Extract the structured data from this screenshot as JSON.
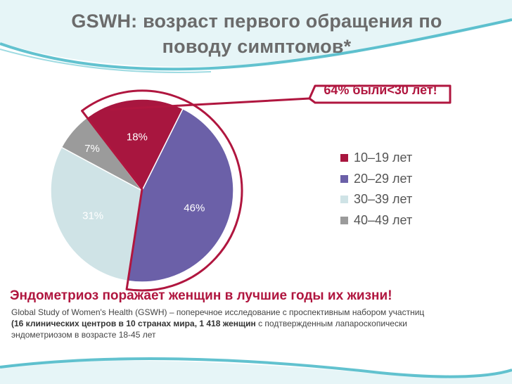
{
  "title": "GSWH: возраст первого обращения по поводу симптомов*",
  "callout": "64% были<30 лет!",
  "chart_data": {
    "type": "pie",
    "title": "GSWH: возраст первого обращения по поводу симптомов*",
    "categories": [
      "10–19 лет",
      "20–29 лет",
      "30–39 лет",
      "40–49 лет"
    ],
    "values": [
      18,
      46,
      31,
      7
    ],
    "value_labels": [
      "18%",
      "46%",
      "31%",
      "7%"
    ],
    "colors": [
      "#a8163f",
      "#6b60a8",
      "#cfe3e6",
      "#9b9b9b"
    ],
    "highlighted": [
      "10–19 лет",
      "20–29 лет"
    ],
    "legend_position": "right"
  },
  "headline": "Эндометриоз поражает женщин в лучшие годы их жизни!",
  "description": {
    "line1": "Global Study of Women's Health (GSWH) – поперечное исследование с проспективным набором участниц",
    "open_paren": "(",
    "bold_part": "16 клинических центров в 10 странах мира, 1 418 женщин",
    "line2_rest": " с подтвержденным лапароскопически",
    "line3": "эндометриозом в возрасте 18-45 лет"
  }
}
